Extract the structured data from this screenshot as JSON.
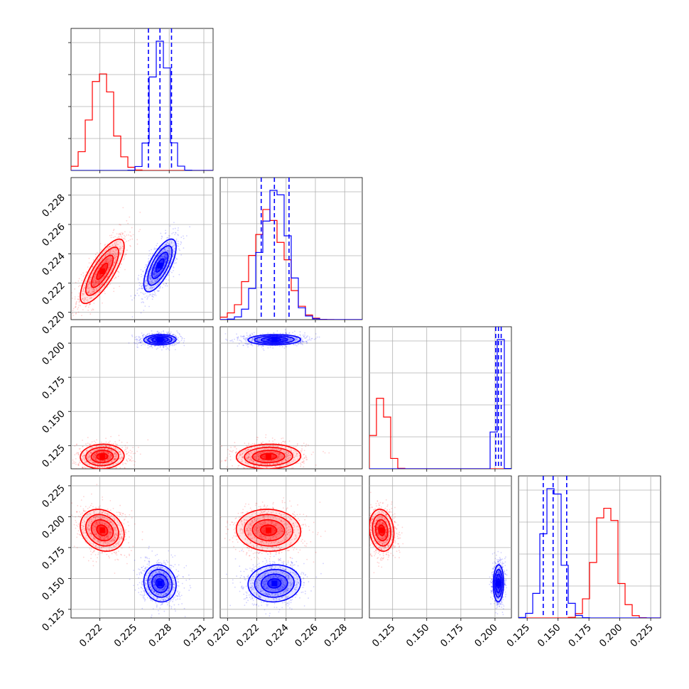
{
  "chart_data": {
    "type": "corner",
    "title": "",
    "variables": [
      {
        "name": "",
        "range": [
          0.2195,
          0.2318
        ],
        "ticks": [
          0.222,
          0.225,
          0.228,
          0.231
        ],
        "tick_labels": [
          "0.222",
          "0.225",
          "0.228",
          "0.231"
        ]
      },
      {
        "name": "",
        "range": [
          0.2195,
          0.2292
        ],
        "ticks": [
          0.22,
          0.222,
          0.224,
          0.226,
          0.228
        ],
        "tick_labels": [
          "0.220",
          "0.222",
          "0.224",
          "0.226",
          "0.228"
        ]
      },
      {
        "name": "",
        "range": [
          0.108,
          0.212
        ],
        "ticks": [
          0.125,
          0.15,
          0.175,
          0.2
        ],
        "tick_labels": [
          "0.125",
          "0.150",
          "0.175",
          "0.200"
        ]
      },
      {
        "name": "",
        "range": [
          0.118,
          0.233
        ],
        "ticks": [
          0.125,
          0.15,
          0.175,
          0.2,
          0.225
        ],
        "tick_labels": [
          "0.125",
          "0.150",
          "0.175",
          "0.200",
          "0.225"
        ]
      }
    ],
    "series": [
      {
        "color": "#ff0000",
        "mean": [
          0.2222,
          0.2228,
          0.117,
          0.189
        ],
        "std": [
          0.00095,
          0.0011,
          0.0045,
          0.0085
        ],
        "correlation": [
          [
            0,
            1,
            0.78
          ],
          [
            0,
            2,
            0.05
          ],
          [
            0,
            3,
            -0.2
          ],
          [
            1,
            2,
            0.05
          ],
          [
            1,
            3,
            -0.05
          ],
          [
            2,
            3,
            -0.15
          ]
        ],
        "quantiles_shown": false
      },
      {
        "color": "#0000ff",
        "mean": [
          0.2272,
          0.2232,
          0.2025,
          0.146
        ],
        "std": [
          0.0007,
          0.0009,
          0.0019,
          0.0075
        ],
        "correlation": [
          [
            0,
            1,
            0.7
          ],
          [
            0,
            2,
            0.05
          ],
          [
            0,
            3,
            -0.1
          ],
          [
            1,
            2,
            0.05
          ],
          [
            1,
            3,
            0.05
          ],
          [
            2,
            3,
            0.05
          ]
        ],
        "quantiles_shown": true,
        "quantiles": [
          [
            0.2262,
            0.2272,
            0.2282
          ],
          [
            0.2223,
            0.2232,
            0.2242
          ],
          [
            0.2005,
            0.2025,
            0.2045
          ],
          [
            0.138,
            0.146,
            0.157
          ]
        ]
      }
    ],
    "histogram_bins": 20,
    "contour_levels": [
      0.5,
      1.0,
      1.5,
      2.0
    ],
    "grid": true
  }
}
